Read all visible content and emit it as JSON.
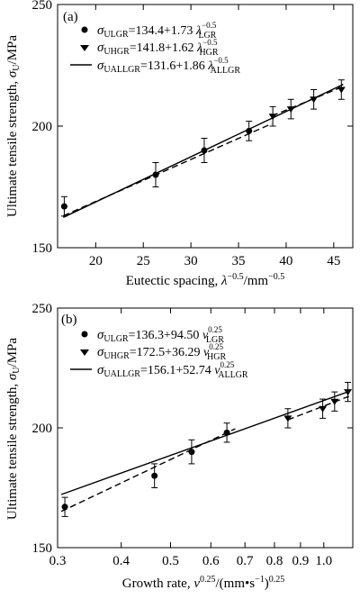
{
  "chart_data": [
    {
      "type": "scatter",
      "panel_label": "(a)",
      "xlabel": "Eutectic spacing, λ^-0.5/mm^-0.5",
      "ylabel": "Ultimate tensile strength, σU/MPa",
      "xlim": [
        16,
        47
      ],
      "ylim": [
        150,
        250
      ],
      "xticks": [
        20,
        25,
        30,
        35,
        40,
        45
      ],
      "yticks": [
        150,
        200,
        250
      ],
      "legend_position": "top-left",
      "series": [
        {
          "name": "σULGR=134.4+1.73 λLGR^-0.5",
          "marker": "circle",
          "fit": {
            "intercept": 134.4,
            "slope": 1.73,
            "x_range": [
              16.6,
              38.5
            ],
            "style": "dashed"
          },
          "points": [
            {
              "x": 16.7,
              "y": 167,
              "err": 4
            },
            {
              "x": 26.3,
              "y": 180,
              "err": 5
            },
            {
              "x": 31.4,
              "y": 190,
              "err": 5
            },
            {
              "x": 36.1,
              "y": 198,
              "err": 4
            }
          ]
        },
        {
          "name": "σUHGR=141.8+1.62 λHGR^-0.5",
          "marker": "triangle-down",
          "fit": {
            "intercept": 141.8,
            "slope": 1.62,
            "x_range": [
              38.5,
              46.0
            ],
            "style": "dashed"
          },
          "points": [
            {
              "x": 38.6,
              "y": 204,
              "err": 4
            },
            {
              "x": 40.5,
              "y": 207,
              "err": 4
            },
            {
              "x": 42.9,
              "y": 211,
              "err": 4
            },
            {
              "x": 45.8,
              "y": 215,
              "err": 4
            }
          ]
        },
        {
          "name": "σUALLGR=131.6+1.86 λALLGR^-0.5",
          "marker": "none",
          "fit": {
            "intercept": 131.6,
            "slope": 1.86,
            "x_range": [
              16.6,
              46.0
            ],
            "style": "solid"
          },
          "points": []
        }
      ]
    },
    {
      "type": "scatter",
      "panel_label": "(b)",
      "xlabel": "Growth rate, v^0.25/(mm·s^-1)^0.25",
      "ylabel": "Ultimate tensile strength, σU/MPa",
      "xlim": [
        0.3,
        1.14
      ],
      "ylim": [
        150,
        250
      ],
      "x_scale": "log",
      "xticks": [
        0.3,
        0.4,
        0.5,
        0.6,
        0.7,
        0.8,
        0.9,
        1.0
      ],
      "xticklabels": [
        "0.3",
        "0.4",
        "0.5",
        "0.6",
        "0.7",
        "0.8",
        "0.9",
        "1.0"
      ],
      "yticks": [
        150,
        200,
        250
      ],
      "legend_position": "top-left",
      "series": [
        {
          "name": "σULGR=136.3+94.50 vLGR^0.25",
          "marker": "circle",
          "fit": {
            "intercept": 136.3,
            "slope": 94.5,
            "x_range": [
              0.305,
              0.67
            ],
            "style": "dashed"
          },
          "points": [
            {
              "x": 0.31,
              "y": 167,
              "err": 4
            },
            {
              "x": 0.465,
              "y": 180,
              "err": 5
            },
            {
              "x": 0.55,
              "y": 190,
              "err": 5
            },
            {
              "x": 0.645,
              "y": 198,
              "err": 4
            }
          ]
        },
        {
          "name": "σUHGR=172.5+36.29 vHGR^0.25",
          "marker": "triangle-down",
          "fit": {
            "intercept": 172.5,
            "slope": 36.29,
            "x_range": [
              0.85,
              1.12
            ],
            "style": "dashed"
          },
          "points": [
            {
              "x": 0.85,
              "y": 204,
              "err": 4
            },
            {
              "x": 0.995,
              "y": 208,
              "err": 4
            },
            {
              "x": 1.05,
              "y": 211,
              "err": 4
            },
            {
              "x": 1.115,
              "y": 215,
              "err": 4
            }
          ]
        },
        {
          "name": "σUALLGR=156.1+52.74 vALLGR^0.25",
          "marker": "none",
          "fit": {
            "intercept": 156.1,
            "slope": 52.74,
            "x_range": [
              0.305,
              1.12
            ],
            "style": "solid"
          },
          "points": []
        }
      ]
    }
  ],
  "legend_text": {
    "a": [
      {
        "sym": "σ",
        "sub": "ULGR",
        "eq": "=134.4+1.73 ",
        "lam": "λ",
        "sup": "−0.5",
        "sub2": "LGR"
      },
      {
        "sym": "σ",
        "sub": "UHGR",
        "eq": "=141.8+1.62 ",
        "lam": "λ",
        "sup": "−0.5",
        "sub2": "HGR"
      },
      {
        "sym": "σ",
        "sub": "UALLGR",
        "eq": "=131.6+1.86 ",
        "lam": "λ",
        "sup": "−0.5",
        "sub2": "ALLGR"
      }
    ],
    "b": [
      {
        "sym": "σ",
        "sub": "ULGR",
        "eq": "=136.3+94.50 ",
        "lam": "v",
        "sup": "0.25",
        "sub2": "LGR"
      },
      {
        "sym": "σ",
        "sub": "UHGR",
        "eq": "=172.5+36.29 ",
        "lam": "v",
        "sup": "0.25",
        "sub2": "HGR"
      },
      {
        "sym": "σ",
        "sub": "UALLGR",
        "eq": "=156.1+52.74 ",
        "lam": "v",
        "sup": "0.25",
        "sub2": "ALLGR"
      }
    ]
  },
  "axis_text": {
    "ylabel_main": "Ultimate tensile strength, ",
    "ylabel_sym": "σ",
    "ylabel_sub": "U",
    "ylabel_unit": "/MPa",
    "xlabel_a_main": "Eutectic spacing, ",
    "xlabel_a_sym": "λ",
    "xlabel_a_sup": "−0.5",
    "xlabel_a_unit": "/mm",
    "xlabel_a_unit_sup": "−0.5",
    "xlabel_b_main": "Growth rate, ",
    "xlabel_b_sym": "v",
    "xlabel_b_sup": "0.25",
    "xlabel_b_unit": "/(mm•s",
    "xlabel_b_unit_sup": "−1",
    "xlabel_b_close": ")",
    "xlabel_b_close_sup": "0.25"
  }
}
